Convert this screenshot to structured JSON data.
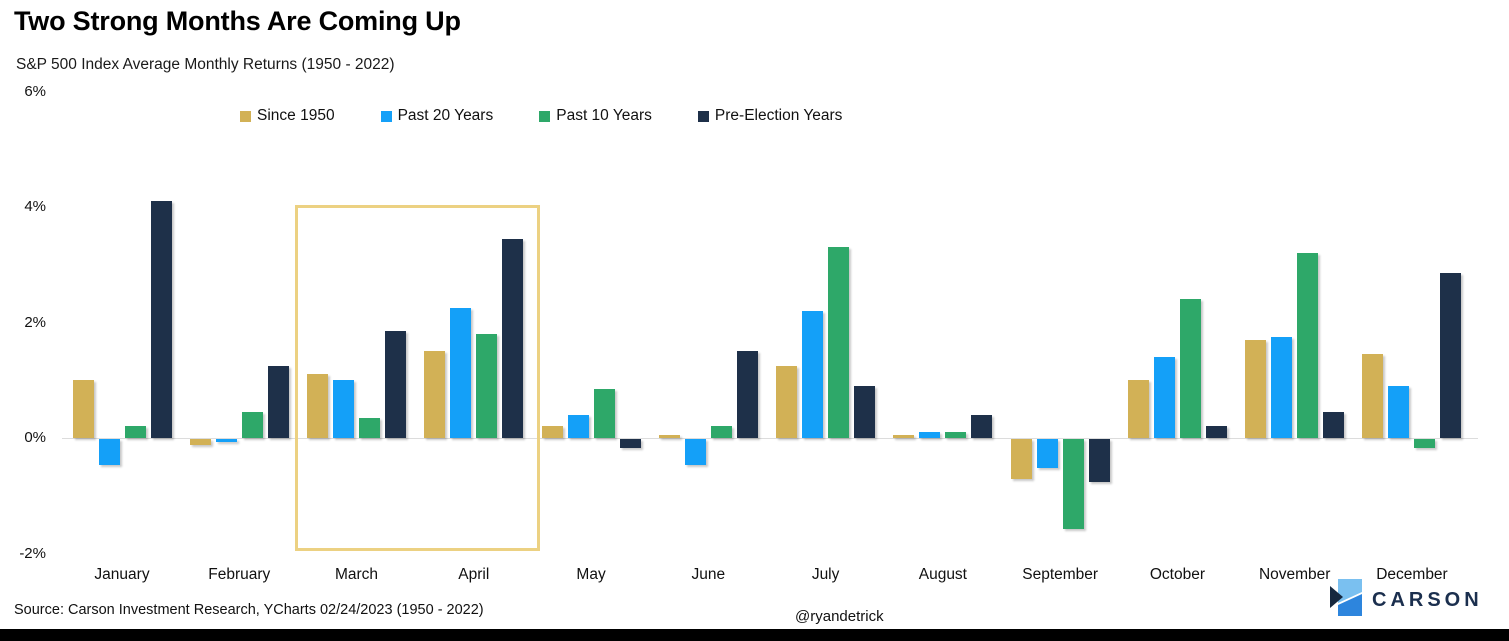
{
  "title": "Two Strong Months Are Coming Up",
  "subtitle": "S&P 500 Index Average Monthly Returns (1950 - 2022)",
  "footer": {
    "source": "Source: Carson Investment Research, YCharts 02/24/2023 (1950 - 2022)",
    "handle": "@ryandetrick",
    "brand": "CARSON"
  },
  "colors": {
    "since_1950": "#d2b156",
    "past_20_years": "#14a0f8",
    "past_10_years": "#2ea869",
    "pre_election": "#1e3049",
    "highlight_border": "#ecd182",
    "gridline": "#dcdcdc",
    "brand_navy": "#1b2f4e",
    "brand_light_blue": "#7ac0f0",
    "brand_mid_blue": "#2d85dd"
  },
  "chart_data": {
    "type": "bar",
    "title": "Two Strong Months Are Coming Up",
    "subtitle": "S&P 500 Index Average Monthly Returns (1950 - 2022)",
    "categories": [
      "January",
      "February",
      "March",
      "April",
      "May",
      "June",
      "July",
      "August",
      "September",
      "October",
      "November",
      "December"
    ],
    "series": [
      {
        "name": "Since 1950",
        "color": "#d2b156",
        "values": [
          1.0,
          -0.1,
          1.1,
          1.5,
          0.2,
          0.05,
          1.25,
          0.05,
          -0.7,
          1.0,
          1.7,
          1.45
        ]
      },
      {
        "name": "Past 20 Years",
        "color": "#14a0f8",
        "values": [
          -0.45,
          -0.05,
          1.0,
          2.25,
          0.4,
          -0.45,
          2.2,
          0.1,
          -0.5,
          1.4,
          1.75,
          0.9
        ]
      },
      {
        "name": "Past 10 Years",
        "color": "#2ea869",
        "values": [
          0.2,
          0.45,
          0.35,
          1.8,
          0.85,
          0.2,
          3.3,
          0.1,
          -1.55,
          2.4,
          3.2,
          -0.15
        ]
      },
      {
        "name": "Pre-Election Years",
        "color": "#1e3049",
        "values": [
          4.1,
          1.25,
          1.85,
          3.45,
          -0.15,
          1.5,
          0.9,
          0.4,
          -0.75,
          0.2,
          0.45,
          2.85
        ]
      }
    ],
    "ylabel": "",
    "xlabel": "",
    "y_ticks": [
      {
        "label": "6%",
        "value": 6
      },
      {
        "label": "4%",
        "value": 4
      },
      {
        "label": "2%",
        "value": 2
      },
      {
        "label": "0%",
        "value": 0
      },
      {
        "label": "-2%",
        "value": -2
      }
    ],
    "ylim": [
      -2.4,
      6.5
    ],
    "grid": "zero-line-only",
    "legend_position": "top",
    "highlight": {
      "months": [
        "March",
        "April"
      ],
      "note": "highlighted with gold rectangle"
    }
  }
}
